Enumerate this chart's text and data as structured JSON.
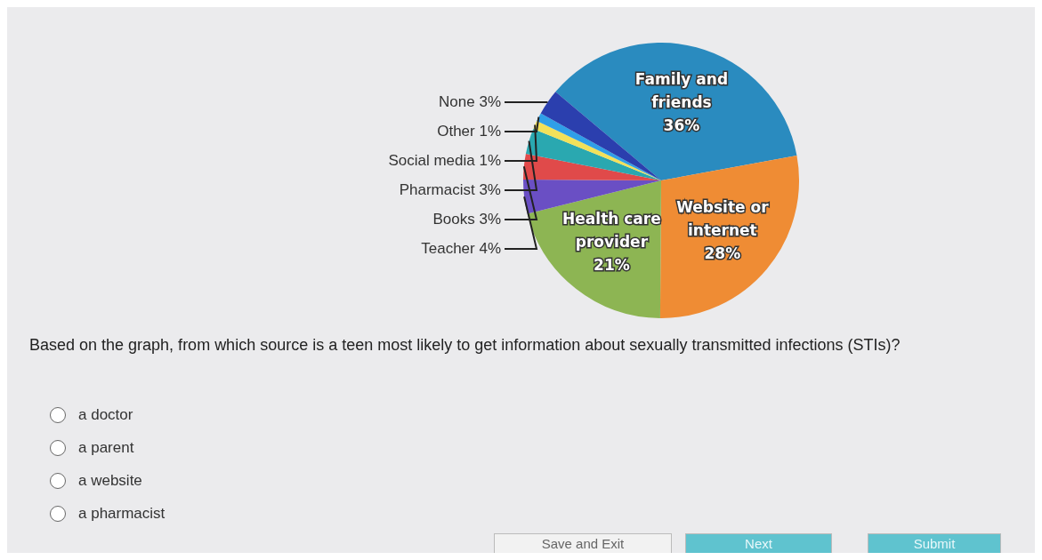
{
  "chart_data": {
    "type": "pie",
    "categories": [
      "Family and friends",
      "Website or internet",
      "Health care provider",
      "Teacher",
      "Books",
      "Pharmacist",
      "Social media",
      "Other",
      "None"
    ],
    "values": [
      36,
      28,
      21,
      4,
      3,
      3,
      1,
      1,
      3
    ],
    "value_labels": [
      "36%",
      "28%",
      "21%",
      "4%",
      "3%",
      "3%",
      "1%",
      "1%",
      "3%"
    ],
    "colors": [
      "#2a8bbf",
      "#ef8c34",
      "#8db553",
      "#6a4fc4",
      "#e04a4a",
      "#2aa8b0",
      "#f2e15a",
      "#2f9fe8",
      "#2b3fae"
    ],
    "legend": false,
    "annotations": [
      "Based on the graph, from which source is a teen most likely to get information about sexually transmitted infections (STIs)?",
      "a doctor",
      "a parent",
      "a website",
      "a pharmacist",
      "Save and Exit",
      "Next",
      "Submit"
    ]
  }
}
